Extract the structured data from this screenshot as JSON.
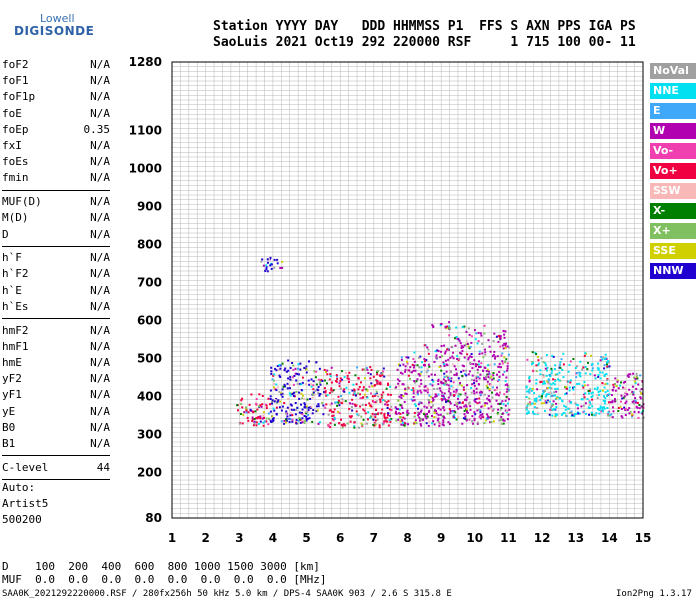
{
  "logo": {
    "line1": "Lowell",
    "line2": "DIGISONDE"
  },
  "header": {
    "labels": "Station YYYY DAY   DDD HHMMSS P1  FFS S AXN PPS IGA PS",
    "values": "SaoLuis 2021 Oct19 292 220000 RSF     1 715 100 00- 11"
  },
  "params_groups": [
    [
      {
        "name": "foF2",
        "value": "N/A"
      },
      {
        "name": "foF1",
        "value": "N/A"
      },
      {
        "name": "foF1p",
        "value": "N/A"
      },
      {
        "name": "foE",
        "value": "N/A"
      },
      {
        "name": "foEp",
        "value": "0.35"
      },
      {
        "name": "fxI",
        "value": "N/A"
      },
      {
        "name": "foEs",
        "value": "N/A"
      },
      {
        "name": "fmin",
        "value": "N/A"
      }
    ],
    [
      {
        "name": "MUF(D)",
        "value": "N/A"
      },
      {
        "name": "M(D)",
        "value": "N/A"
      },
      {
        "name": "D",
        "value": "N/A"
      }
    ],
    [
      {
        "name": "h`F",
        "value": "N/A"
      },
      {
        "name": "h`F2",
        "value": "N/A"
      },
      {
        "name": "h`E",
        "value": "N/A"
      },
      {
        "name": "h`Es",
        "value": "N/A"
      }
    ],
    [
      {
        "name": "hmF2",
        "value": "N/A"
      },
      {
        "name": "hmF1",
        "value": "N/A"
      },
      {
        "name": "hmE",
        "value": "N/A"
      },
      {
        "name": "yF2",
        "value": "N/A"
      },
      {
        "name": "yF1",
        "value": "N/A"
      },
      {
        "name": "yE",
        "value": "N/A"
      },
      {
        "name": "B0",
        "value": "N/A"
      },
      {
        "name": "B1",
        "value": "N/A"
      }
    ],
    [
      {
        "name": "C-level",
        "value": "44"
      }
    ]
  ],
  "auto": {
    "label": "Auto:",
    "artist": "Artist5",
    "version": "500200"
  },
  "legend": [
    {
      "label": "NoVal",
      "color": "#a0a0a0"
    },
    {
      "label": "NNE",
      "color": "#00e0f0"
    },
    {
      "label": "E",
      "color": "#40a8f8"
    },
    {
      "label": "W",
      "color": "#b000b0"
    },
    {
      "label": "Vo-",
      "color": "#f040b0"
    },
    {
      "label": "Vo+",
      "color": "#f00040"
    },
    {
      "label": "SSW",
      "color": "#f8b8b8"
    },
    {
      "label": "X-",
      "color": "#008000"
    },
    {
      "label": "X+",
      "color": "#80c060"
    },
    {
      "label": "SSE",
      "color": "#d0d000"
    },
    {
      "label": "NNW",
      "color": "#2000d0"
    }
  ],
  "bottom": {
    "d_row": "D    100  200  400  600  800 1000 1500 3000 [km]",
    "muf_row": "MUF  0.0  0.0  0.0  0.0  0.0  0.0  0.0  0.0 [MHz]"
  },
  "footer": {
    "left": "SAA0K_2021292220000.RSF / 280fx256h 50 kHz 5.0 km / DPS-4 SAA0K 903 / 2.6 S 315.8 E",
    "right": "Ion2Png 1.3.17"
  },
  "chart_data": {
    "type": "scatter",
    "title": "",
    "xlabel": "",
    "ylabel": "",
    "xlim": [
      1,
      15
    ],
    "ylim": [
      80,
      1280
    ],
    "x_ticks": [
      1,
      2,
      3,
      4,
      5,
      6,
      7,
      8,
      9,
      10,
      11,
      12,
      13,
      14,
      15
    ],
    "y_ticks": [
      80,
      200,
      300,
      400,
      500,
      600,
      700,
      800,
      900,
      1000,
      1100,
      1280
    ],
    "grid": true,
    "legend_position": "right",
    "echo_regions": [
      {
        "x": [
          2.9,
          3.9
        ],
        "y": [
          325,
          410
        ],
        "dominant": "Vo+"
      },
      {
        "x": [
          3.9,
          5.5
        ],
        "y": [
          330,
          500
        ],
        "dominant": "NNW"
      },
      {
        "x": [
          5.5,
          7.5
        ],
        "y": [
          320,
          480
        ],
        "dominant": "Vo+"
      },
      {
        "x": [
          7.6,
          9.1
        ],
        "y": [
          325,
          540
        ],
        "dominant": "W"
      },
      {
        "x": [
          9.1,
          11.0
        ],
        "y": [
          330,
          590
        ],
        "dominant": "W"
      },
      {
        "x": [
          11.5,
          14.0
        ],
        "y": [
          350,
          520
        ],
        "dominant": "NNE"
      },
      {
        "x": [
          14.0,
          15.0
        ],
        "y": [
          345,
          470
        ],
        "dominant": "W"
      },
      {
        "x": [
          3.6,
          4.3
        ],
        "y": [
          730,
          770
        ],
        "dominant": "NNW"
      },
      {
        "x": [
          8.7,
          9.3
        ],
        "y": [
          575,
          600
        ],
        "dominant": "W"
      }
    ]
  }
}
